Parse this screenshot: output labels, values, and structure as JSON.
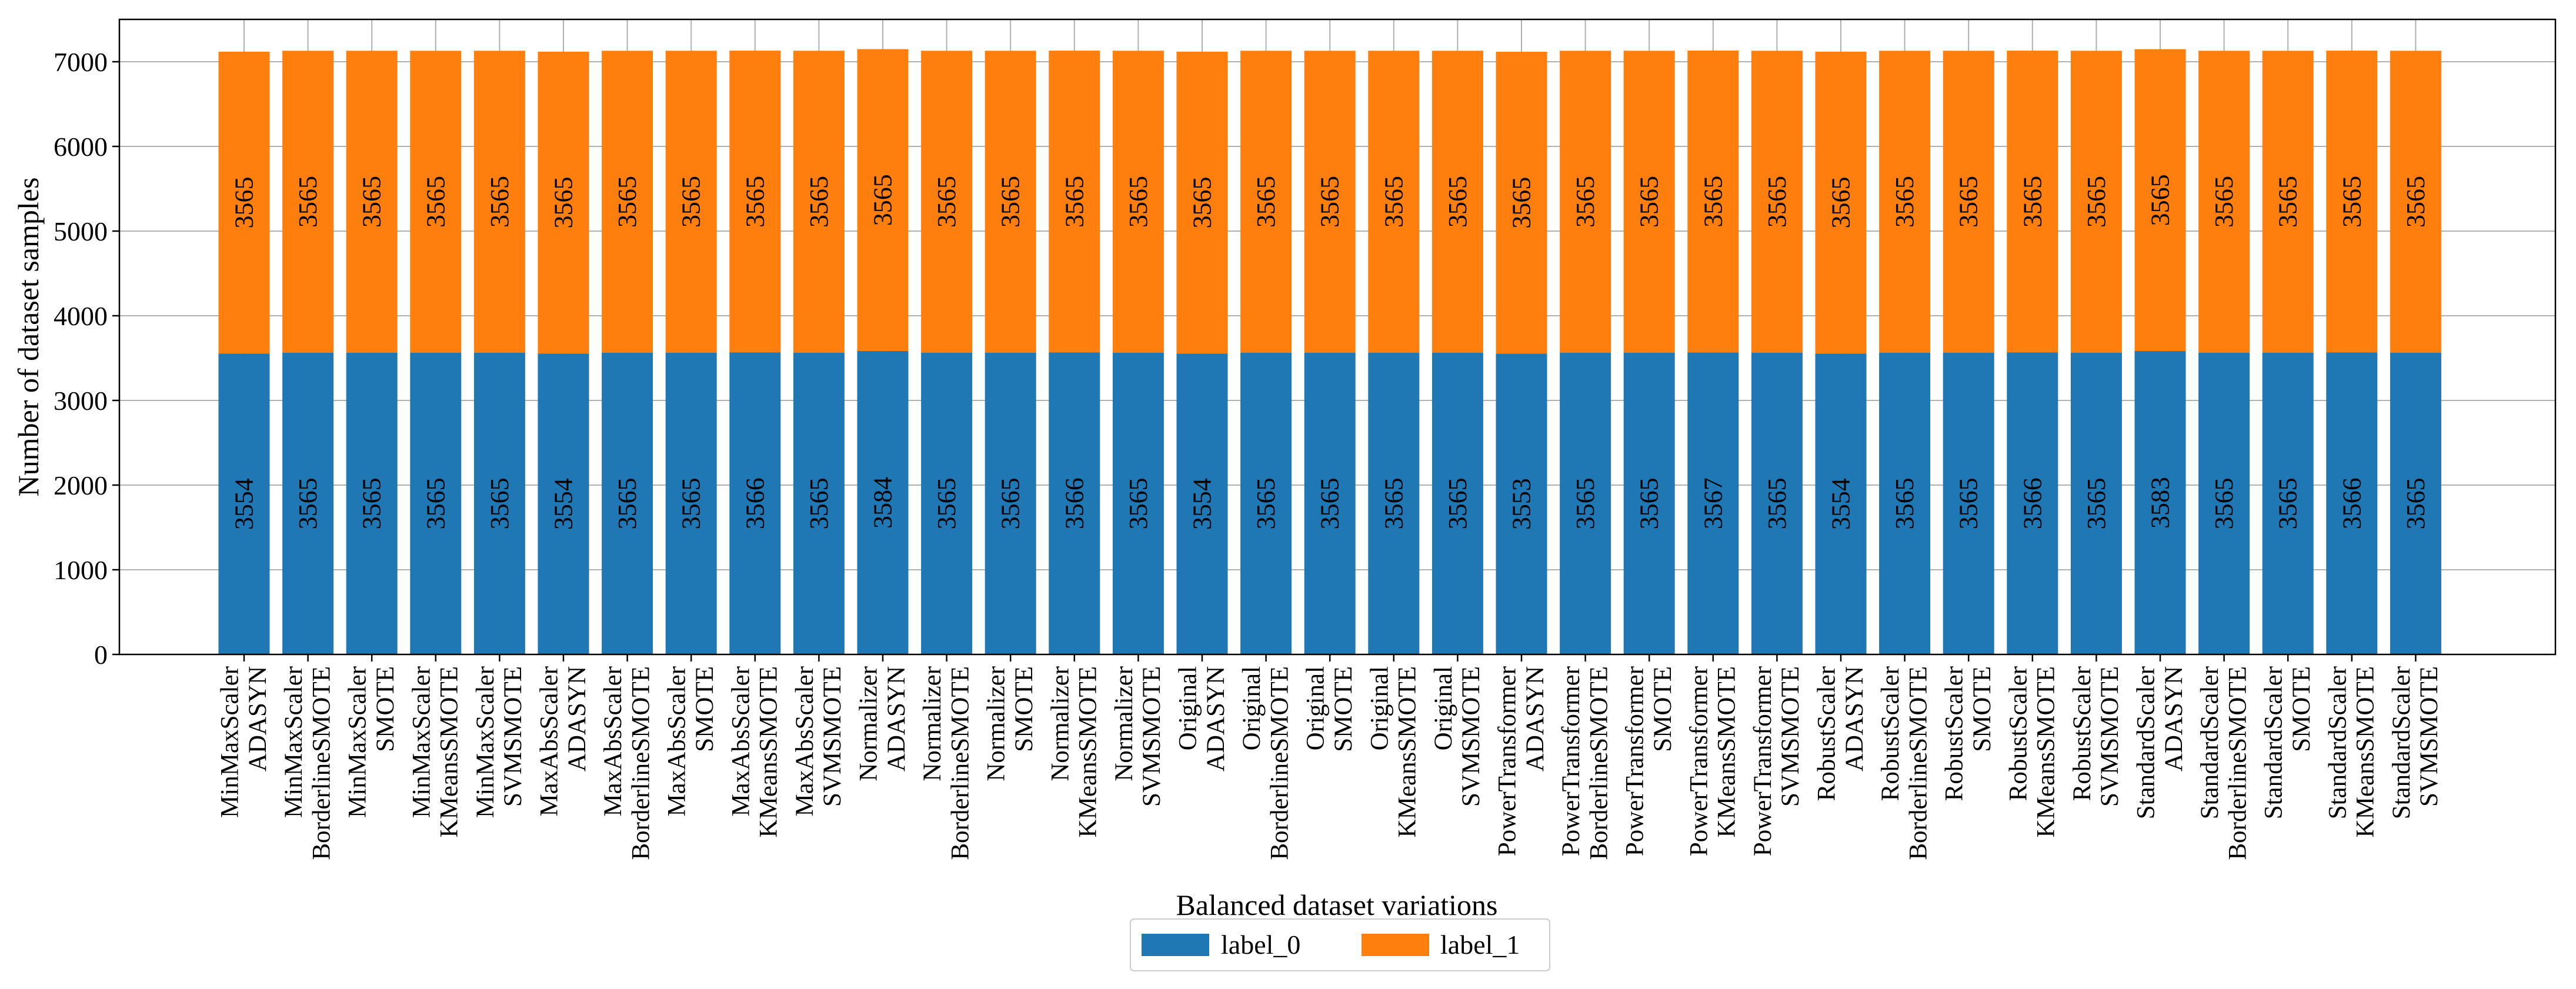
{
  "colors": {
    "label_0": "#1f77b4",
    "label_1": "#ff7f0e",
    "grid": "#b0b0b0",
    "axis": "#000000"
  },
  "chart_data": {
    "type": "bar",
    "stacked": true,
    "title": "",
    "xlabel": "Balanced dataset variations",
    "ylabel": "Number of dataset samples",
    "ylim": [
      0,
      7500
    ],
    "yticks": [
      0,
      1000,
      2000,
      3000,
      4000,
      5000,
      6000,
      7000
    ],
    "grid": true,
    "legend_position": "bottom-center",
    "categories": [
      [
        "MinMaxScaler",
        "ADASYN"
      ],
      [
        "MinMaxScaler",
        "BorderlineSMOTE"
      ],
      [
        "MinMaxScaler",
        "SMOTE"
      ],
      [
        "MinMaxScaler",
        "KMeansSMOTE"
      ],
      [
        "MinMaxScaler",
        "SVMSMOTE"
      ],
      [
        "MaxAbsScaler",
        "ADASYN"
      ],
      [
        "MaxAbsScaler",
        "BorderlineSMOTE"
      ],
      [
        "MaxAbsScaler",
        "SMOTE"
      ],
      [
        "MaxAbsScaler",
        "KMeansSMOTE"
      ],
      [
        "MaxAbsScaler",
        "SVMSMOTE"
      ],
      [
        "Normalizer",
        "ADASYN"
      ],
      [
        "Normalizer",
        "BorderlineSMOTE"
      ],
      [
        "Normalizer",
        "SMOTE"
      ],
      [
        "Normalizer",
        "KMeansSMOTE"
      ],
      [
        "Normalizer",
        "SVMSMOTE"
      ],
      [
        "Original",
        "ADASYN"
      ],
      [
        "Original",
        "BorderlineSMOTE"
      ],
      [
        "Original",
        "SMOTE"
      ],
      [
        "Original",
        "KMeansSMOTE"
      ],
      [
        "Original",
        "SVMSMOTE"
      ],
      [
        "PowerTransformer",
        "ADASYN"
      ],
      [
        "PowerTransformer",
        "BorderlineSMOTE"
      ],
      [
        "PowerTransformer",
        "SMOTE"
      ],
      [
        "PowerTransformer",
        "KMeansSMOTE"
      ],
      [
        "PowerTransformer",
        "SVMSMOTE"
      ],
      [
        "RobustScaler",
        "ADASYN"
      ],
      [
        "RobustScaler",
        "BorderlineSMOTE"
      ],
      [
        "RobustScaler",
        "SMOTE"
      ],
      [
        "RobustScaler",
        "KMeansSMOTE"
      ],
      [
        "RobustScaler",
        "SVMSMOTE"
      ],
      [
        "StandardScaler",
        "ADASYN"
      ],
      [
        "StandardScaler",
        "BorderlineSMOTE"
      ],
      [
        "StandardScaler",
        "SMOTE"
      ],
      [
        "StandardScaler",
        "KMeansSMOTE"
      ],
      [
        "StandardScaler",
        "SVMSMOTE"
      ]
    ],
    "series": [
      {
        "name": "label_0",
        "values": [
          3554,
          3565,
          3565,
          3565,
          3565,
          3554,
          3565,
          3565,
          3566,
          3565,
          3584,
          3565,
          3565,
          3566,
          3565,
          3554,
          3565,
          3565,
          3565,
          3565,
          3553,
          3565,
          3565,
          3567,
          3565,
          3554,
          3565,
          3565,
          3566,
          3565,
          3583,
          3565,
          3565,
          3566,
          3565
        ]
      },
      {
        "name": "label_1",
        "values": [
          3565,
          3565,
          3565,
          3565,
          3565,
          3565,
          3565,
          3565,
          3565,
          3565,
          3565,
          3565,
          3565,
          3565,
          3565,
          3565,
          3565,
          3565,
          3565,
          3565,
          3565,
          3565,
          3565,
          3565,
          3565,
          3565,
          3565,
          3565,
          3565,
          3565,
          3565,
          3565,
          3565,
          3565,
          3565
        ]
      }
    ]
  }
}
